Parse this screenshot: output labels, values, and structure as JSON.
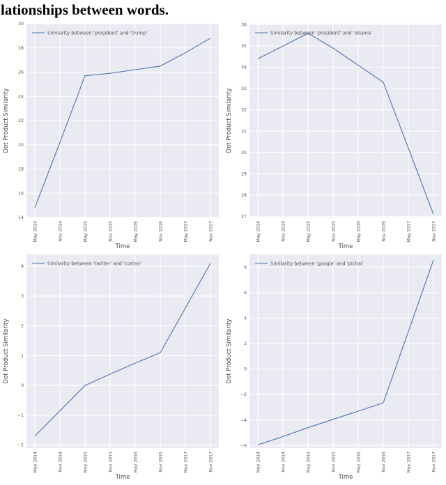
{
  "caption": "lationships between words.",
  "colors": {
    "line": "#4c72b0",
    "plot_bg": "#eaeaf2",
    "grid": "#ffffff",
    "tick_text": "#555555",
    "label_text": "#444444"
  },
  "chart_data": [
    {
      "type": "line",
      "legend": "Similarity between 'president' and 'trump'",
      "xlabel": "Time",
      "ylabel": "Dot Product Similarity",
      "x": [
        "May 2014",
        "Nov 2014",
        "May 2015",
        "Nov 2015",
        "May 2016",
        "Nov 2016",
        "May 2017",
        "Nov 2017"
      ],
      "values": [
        14.8,
        20.2,
        25.7,
        25.9,
        26.2,
        26.5,
        27.6,
        28.8
      ],
      "yticks": [
        14,
        16,
        18,
        20,
        22,
        24,
        26,
        28,
        30
      ],
      "ylim": [
        14,
        30
      ],
      "grid": true,
      "legend_position": "upper left"
    },
    {
      "type": "line",
      "legend": "Similarity between 'president' and 'obama'",
      "xlabel": "Time",
      "ylabel": "Dot Product Similarity",
      "x": [
        "May 2014",
        "Nov 2014",
        "May 2015",
        "Nov 2015",
        "May 2016",
        "Nov 2016",
        "May 2017",
        "Nov 2017"
      ],
      "values": [
        34.4,
        35.0,
        35.6,
        34.9,
        34.1,
        33.3,
        30.2,
        27.1
      ],
      "yticks": [
        27,
        28,
        29,
        30,
        31,
        32,
        33,
        34,
        35,
        36
      ],
      "ylim": [
        26.95,
        36.05
      ],
      "grid": true,
      "legend_position": "upper left"
    },
    {
      "type": "line",
      "legend": "Similarity between 'twitter' and 'cortex'",
      "xlabel": "Time",
      "ylabel": "Dot Product Similarity",
      "x": [
        "May 2014",
        "Nov 2014",
        "May 2015",
        "Nov 2015",
        "May 2016",
        "Nov 2016",
        "May 2017",
        "Nov 2017"
      ],
      "values": [
        -1.7,
        -0.85,
        0.0,
        0.38,
        0.75,
        1.1,
        2.6,
        4.1
      ],
      "yticks": [
        -2,
        -1,
        0,
        1,
        2,
        3,
        4
      ],
      "ylim": [
        -2.1,
        4.4
      ],
      "grid": true,
      "legend_position": "upper left"
    },
    {
      "type": "line",
      "legend": "Similarity between 'google' and 'pichai'",
      "xlabel": "Time",
      "ylabel": "Dot Product Similarity",
      "x": [
        "May 2014",
        "Nov 2014",
        "May 2015",
        "Nov 2015",
        "May 2016",
        "Nov 2016",
        "May 2017",
        "Nov 2017"
      ],
      "values": [
        -5.95,
        -5.3,
        -4.6,
        -3.95,
        -3.3,
        -2.65,
        2.95,
        8.55
      ],
      "yticks": [
        -6,
        -4,
        -2,
        0,
        2,
        4,
        6,
        8
      ],
      "ylim": [
        -6.2,
        9.0
      ],
      "grid": true,
      "legend_position": "upper left"
    }
  ]
}
